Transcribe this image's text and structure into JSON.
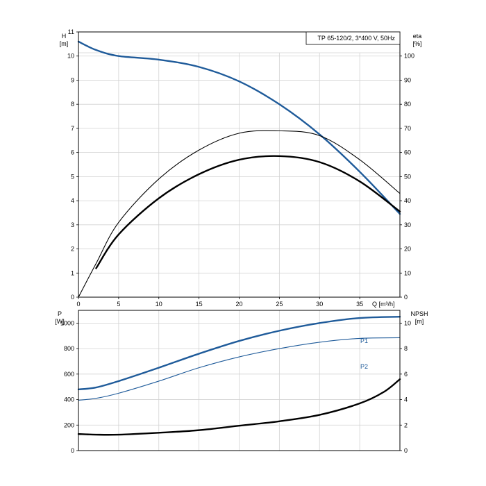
{
  "chart_data": [
    {
      "type": "line",
      "title": "TP 65-120/2, 3*400 V, 50Hz",
      "xlabel": "Q [m³/h]",
      "ylabel": [
        "H",
        "[m]"
      ],
      "ylabel2": [
        "eta",
        "[%]"
      ],
      "xlim": [
        0,
        40
      ],
      "ylim": [
        0,
        11
      ],
      "ylim2": [
        0,
        110
      ],
      "grid": true,
      "xticks": [
        "0",
        "5",
        "10",
        "15",
        "20",
        "25",
        "30",
        "35"
      ],
      "yticks": [
        "0",
        "1",
        "2",
        "3",
        "4",
        "5",
        "6",
        "7",
        "8",
        "9",
        "10",
        "11"
      ],
      "yticks2": [
        "0",
        "10",
        "20",
        "30",
        "40",
        "50",
        "60",
        "70",
        "80",
        "90",
        "100"
      ],
      "series": [
        {
          "role": "H",
          "axis": "left",
          "color": "#1f5b9a",
          "style": "thick",
          "x": [
            0,
            2.2,
            5,
            10,
            15,
            20,
            25,
            30,
            35,
            40
          ],
          "y": [
            10.6,
            10.25,
            10.0,
            9.85,
            9.55,
            8.95,
            8.0,
            6.75,
            5.2,
            3.45
          ]
        },
        {
          "role": "eta-1",
          "axis": "right",
          "color": "#000000",
          "style": "thin",
          "x": [
            0,
            2.2,
            5,
            10,
            15,
            20,
            25,
            30,
            35,
            40
          ],
          "y": [
            0,
            14,
            31,
            49,
            61,
            68,
            69,
            67,
            57,
            43
          ]
        },
        {
          "role": "eta-2",
          "axis": "right",
          "color": "#000000",
          "style": "thick",
          "x": [
            2.2,
            5,
            10,
            15,
            20,
            25,
            30,
            35,
            40
          ],
          "y": [
            12,
            26,
            41,
            51,
            57,
            58.5,
            56,
            48,
            35.5
          ]
        }
      ]
    },
    {
      "type": "line",
      "xlabel": "",
      "ylabel": [
        "P",
        "[W]"
      ],
      "ylabel2": [
        "NPSH",
        "[m]"
      ],
      "xlim": [
        0,
        40
      ],
      "ylim": [
        0,
        1100
      ],
      "ylim2": [
        0,
        11
      ],
      "grid": true,
      "yticks": [
        "0",
        "200",
        "400",
        "600",
        "800",
        "1000"
      ],
      "yticks2": [
        "0",
        "2",
        "4",
        "6",
        "8",
        "10"
      ],
      "series": [
        {
          "name": "P1",
          "axis": "left",
          "color": "#1f5b9a",
          "style": "thick",
          "x": [
            0,
            2.2,
            5,
            10,
            15,
            20,
            25,
            30,
            35,
            40
          ],
          "y": [
            480,
            495,
            545,
            650,
            760,
            860,
            940,
            1000,
            1040,
            1050
          ]
        },
        {
          "name": "P2",
          "axis": "left",
          "color": "#1f5b9a",
          "style": "thin",
          "x": [
            0,
            2.2,
            5,
            10,
            15,
            20,
            25,
            30,
            35,
            40
          ],
          "y": [
            395,
            410,
            450,
            545,
            650,
            735,
            800,
            850,
            880,
            885
          ]
        },
        {
          "role": "NPSH",
          "axis": "right",
          "color": "#000000",
          "style": "thick",
          "x": [
            0,
            2.2,
            5,
            10,
            15,
            20,
            25,
            30,
            35,
            38,
            40
          ],
          "y": [
            1.3,
            1.25,
            1.25,
            1.4,
            1.6,
            1.95,
            2.3,
            2.8,
            3.7,
            4.6,
            5.6
          ]
        }
      ]
    }
  ]
}
